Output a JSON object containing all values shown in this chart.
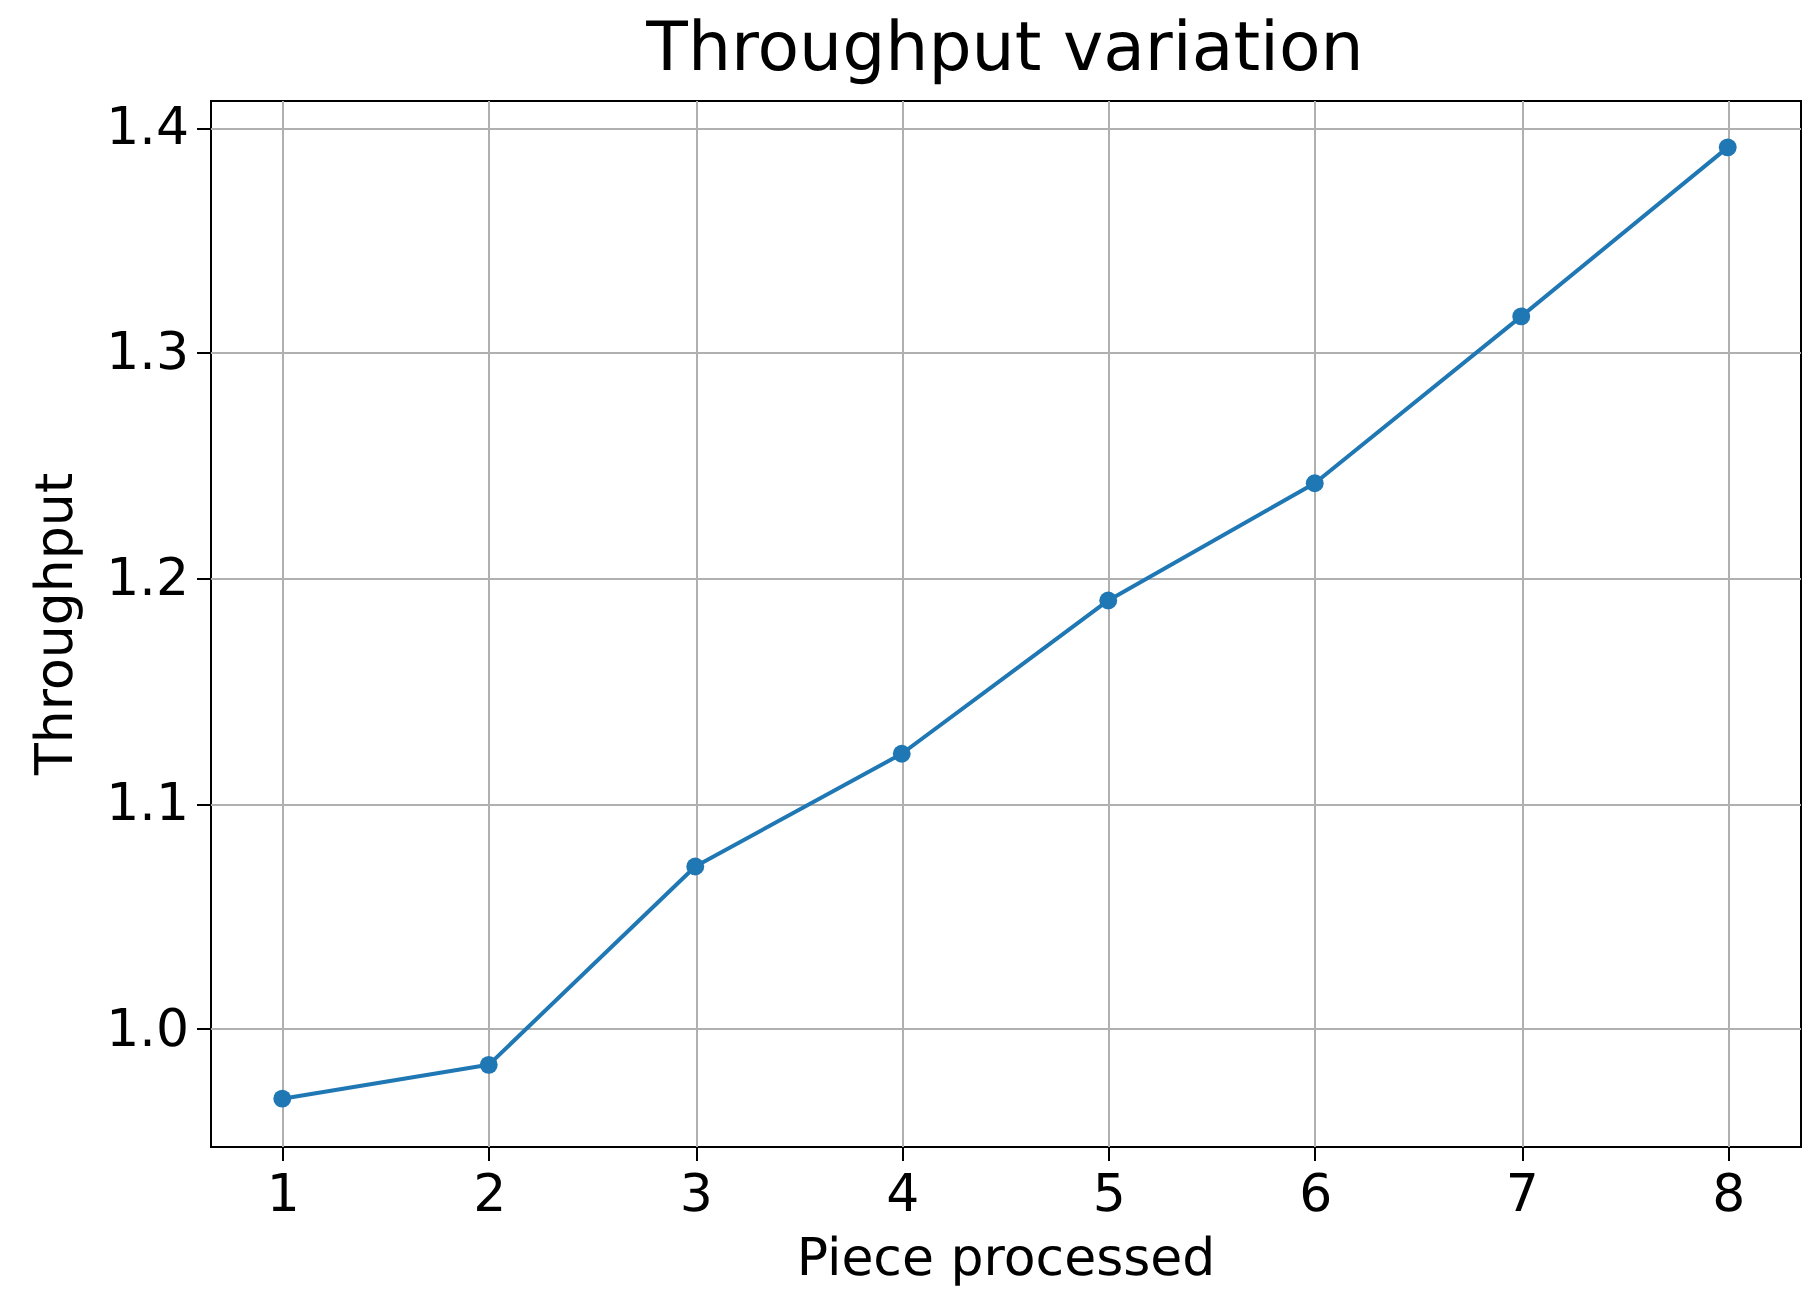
{
  "chart_data": {
    "type": "line",
    "title": "Throughput variation",
    "xlabel": "Piece processed",
    "ylabel": "Throughput",
    "x": [
      1,
      2,
      3,
      4,
      5,
      6,
      7,
      8
    ],
    "series": [
      {
        "color": "#1f77b4",
        "values": [
          0.969,
          0.984,
          1.072,
          1.122,
          1.19,
          1.242,
          1.316,
          1.391
        ]
      }
    ],
    "xlim": [
      0.65,
      8.35
    ],
    "xticks": [
      1,
      2,
      3,
      4,
      5,
      6,
      7,
      8
    ],
    "ylim": [
      0.948,
      1.412
    ],
    "yticks": [
      {
        "value": 1,
        "label": "1.0"
      },
      1.1,
      1.2,
      1.3,
      1.4
    ],
    "grid": true,
    "marker": "circle",
    "line_style": "solid"
  }
}
